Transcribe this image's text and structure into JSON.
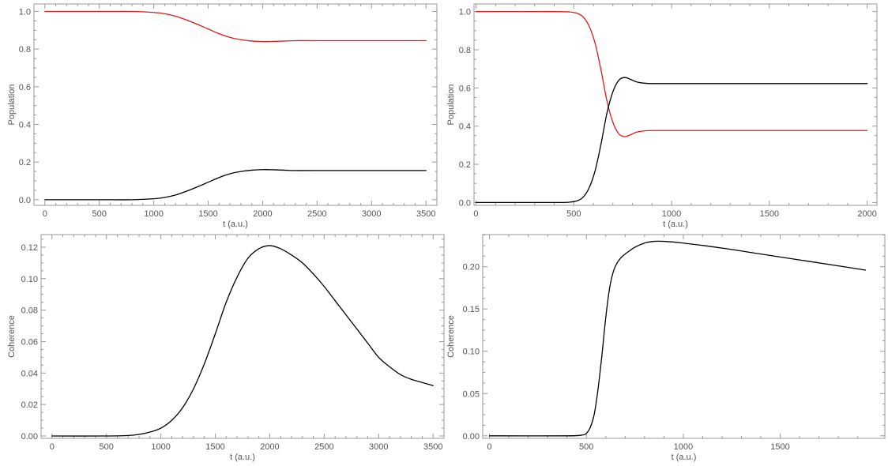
{
  "chart_data": [
    {
      "type": "line",
      "xlabel": "t (a.u.)",
      "ylabel": "Population",
      "xlim": [
        -100,
        3600
      ],
      "ylim": [
        -0.03,
        1.04
      ],
      "x_ticks_major": [
        0,
        500,
        1000,
        1500,
        2000,
        2500,
        3000,
        3500
      ],
      "y_ticks_major": [
        0.0,
        0.2,
        0.4,
        0.6,
        0.8,
        1.0
      ],
      "x_tick_labels": [
        "0",
        "500",
        "1000",
        "1500",
        "2000",
        "2500",
        "3000",
        "3500"
      ],
      "y_tick_labels": [
        "0.0",
        "0.2",
        "0.4",
        "0.6",
        "0.8",
        "1.0"
      ],
      "grid": false,
      "series": [
        {
          "color": "#e0191b",
          "x": [
            0,
            500,
            800,
            1000,
            1100,
            1200,
            1300,
            1400,
            1500,
            1600,
            1700,
            1800,
            1900,
            2000,
            2100,
            2200,
            2300,
            2500,
            3000,
            3500
          ],
          "y": [
            1.0,
            1.0,
            1.0,
            0.995,
            0.988,
            0.975,
            0.955,
            0.932,
            0.907,
            0.882,
            0.862,
            0.85,
            0.843,
            0.84,
            0.841,
            0.843,
            0.845,
            0.845,
            0.845,
            0.845
          ]
        },
        {
          "color": "#000000",
          "x": [
            0,
            500,
            800,
            1000,
            1100,
            1200,
            1300,
            1400,
            1500,
            1600,
            1700,
            1800,
            1900,
            2000,
            2100,
            2200,
            2300,
            2500,
            3000,
            3500
          ],
          "y": [
            0.0,
            0.0,
            0.0,
            0.005,
            0.012,
            0.025,
            0.045,
            0.068,
            0.093,
            0.118,
            0.138,
            0.15,
            0.157,
            0.16,
            0.159,
            0.157,
            0.155,
            0.155,
            0.155,
            0.155
          ]
        }
      ]
    },
    {
      "type": "line",
      "xlabel": "t (a.u.)",
      "ylabel": "Population",
      "xlim": [
        -10,
        2050
      ],
      "ylim": [
        -0.015,
        1.04
      ],
      "x_ticks_major": [
        0,
        500,
        1000,
        1500,
        2000
      ],
      "y_ticks_major": [
        0.0,
        0.2,
        0.4,
        0.6,
        0.8,
        1.0
      ],
      "x_tick_labels": [
        "0",
        "500",
        "1000",
        "1500",
        "2000"
      ],
      "y_tick_labels": [
        "0.0",
        "0.2",
        "0.4",
        "0.6",
        "0.8",
        "1.0"
      ],
      "grid": false,
      "series": [
        {
          "color": "#e0191b",
          "x": [
            0,
            400,
            480,
            520,
            550,
            580,
            610,
            640,
            670,
            700,
            730,
            760,
            790,
            820,
            860,
            900,
            1000,
            1500,
            2000
          ],
          "y": [
            1.0,
            1.0,
            0.998,
            0.99,
            0.97,
            0.92,
            0.83,
            0.69,
            0.53,
            0.42,
            0.36,
            0.345,
            0.355,
            0.368,
            0.375,
            0.377,
            0.377,
            0.377,
            0.377
          ]
        },
        {
          "color": "#000000",
          "x": [
            0,
            400,
            480,
            520,
            550,
            580,
            610,
            640,
            670,
            700,
            730,
            760,
            790,
            820,
            860,
            900,
            1000,
            1500,
            2000
          ],
          "y": [
            0.0,
            0.0,
            0.002,
            0.01,
            0.03,
            0.08,
            0.17,
            0.31,
            0.47,
            0.58,
            0.64,
            0.655,
            0.645,
            0.632,
            0.625,
            0.623,
            0.623,
            0.623,
            0.623
          ]
        }
      ]
    },
    {
      "type": "line",
      "xlabel": "t (a.u.)",
      "ylabel": "Coherence",
      "xlim": [
        -100,
        3600
      ],
      "ylim": [
        -0.0015,
        0.128
      ],
      "x_ticks_major": [
        0,
        500,
        1000,
        1500,
        2000,
        2500,
        3000,
        3500
      ],
      "y_ticks_major": [
        0.0,
        0.02,
        0.04,
        0.06,
        0.08,
        0.1,
        0.12
      ],
      "x_tick_labels": [
        "0",
        "500",
        "1000",
        "1500",
        "2000",
        "2500",
        "3000",
        "3500"
      ],
      "y_tick_labels": [
        "0.00",
        "0.02",
        "0.04",
        "0.06",
        "0.08",
        "0.10",
        "0.12"
      ],
      "grid": false,
      "series": [
        {
          "color": "#000000",
          "x": [
            0,
            500,
            700,
            800,
            900,
            1000,
            1100,
            1200,
            1300,
            1400,
            1500,
            1600,
            1700,
            1800,
            1900,
            2000,
            2100,
            2200,
            2300,
            2400,
            2500,
            2600,
            2700,
            2800,
            2900,
            3000,
            3100,
            3200,
            3300,
            3400,
            3500
          ],
          "y": [
            0.0,
            0.0,
            0.0003,
            0.001,
            0.0025,
            0.005,
            0.01,
            0.018,
            0.03,
            0.046,
            0.065,
            0.085,
            0.101,
            0.113,
            0.119,
            0.121,
            0.119,
            0.115,
            0.11,
            0.103,
            0.095,
            0.086,
            0.077,
            0.068,
            0.059,
            0.05,
            0.044,
            0.039,
            0.036,
            0.034,
            0.032
          ]
        }
      ]
    },
    {
      "type": "line",
      "xlabel": "t (a.u.)",
      "ylabel": "Coherence",
      "xlim": [
        -35,
        2040
      ],
      "ylim": [
        -0.003,
        0.238
      ],
      "x_ticks_major": [
        0,
        500,
        1000,
        1500
      ],
      "y_ticks_major": [
        0.0,
        0.05,
        0.1,
        0.15,
        0.2
      ],
      "x_tick_labels": [
        "0",
        "500",
        "1000",
        "1500"
      ],
      "y_tick_labels": [
        "0.00",
        "0.05",
        "0.10",
        "0.15",
        "0.20"
      ],
      "grid": false,
      "series": [
        {
          "color": "#000000",
          "x": [
            0,
            400,
            480,
            500,
            520,
            540,
            560,
            580,
            600,
            620,
            640,
            660,
            680,
            700,
            750,
            800,
            850,
            900,
            1000,
            1200,
            1400,
            1600,
            1800,
            1940
          ],
          "y": [
            0.0,
            0.0,
            0.001,
            0.003,
            0.01,
            0.025,
            0.055,
            0.095,
            0.14,
            0.175,
            0.195,
            0.205,
            0.211,
            0.215,
            0.223,
            0.228,
            0.23,
            0.23,
            0.228,
            0.222,
            0.215,
            0.208,
            0.201,
            0.196
          ]
        }
      ]
    }
  ]
}
